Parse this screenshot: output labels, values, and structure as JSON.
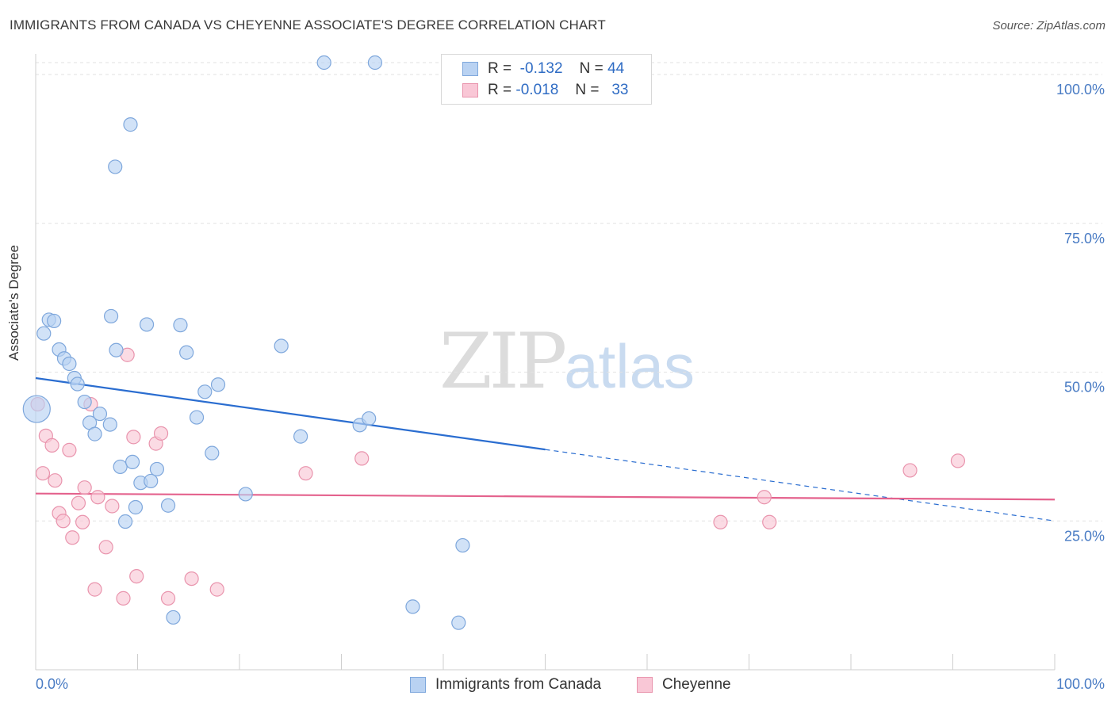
{
  "header": {
    "title": "IMMIGRANTS FROM CANADA VS CHEYENNE ASSOCIATE'S DEGREE CORRELATION CHART",
    "source": "Source: ZipAtlas.com"
  },
  "watermark": {
    "part1": "ZIP",
    "part2": "atlas"
  },
  "legend_top": {
    "rows": [
      {
        "r_label": "R =",
        "r_value": "-0.132",
        "n_label": "N =",
        "n_value": "44"
      },
      {
        "r_label": "R =",
        "r_value": "-0.018",
        "n_label": "N =",
        "n_value": "33"
      }
    ]
  },
  "legend_bottom": {
    "items": [
      {
        "label": "Immigrants from Canada"
      },
      {
        "label": "Cheyenne"
      }
    ]
  },
  "colors": {
    "blue_fill": "#b9d2f2",
    "blue_stroke": "#7ea7dc",
    "blue_line": "#2a6dd0",
    "pink_fill": "#f9c7d6",
    "pink_stroke": "#e994ad",
    "pink_line": "#e4628d",
    "tick_text": "#4a7cc4"
  },
  "chart_data": {
    "type": "scatter",
    "title": "IMMIGRANTS FROM CANADA VS CHEYENNE ASSOCIATE'S DEGREE CORRELATION CHART",
    "xlabel": "",
    "ylabel": "Associate's Degree",
    "xlim": [
      0,
      100
    ],
    "ylim": [
      0,
      102
    ],
    "x_tick_labels": [
      "0.0%",
      "100.0%"
    ],
    "y_ticks": [
      25,
      50,
      75,
      100
    ],
    "y_tick_labels": [
      "25.0%",
      "50.0%",
      "75.0%",
      "100.0%"
    ],
    "grid": true,
    "legend_position": "top-center",
    "series": [
      {
        "name": "Immigrants from Canada",
        "r": -0.132,
        "n": 44,
        "points": [
          [
            0.8,
            56.5
          ],
          [
            1.3,
            58.8
          ],
          [
            1.8,
            58.6
          ],
          [
            2.3,
            53.8
          ],
          [
            2.8,
            52.3
          ],
          [
            3.3,
            51.4
          ],
          [
            3.8,
            49.0
          ],
          [
            4.1,
            48.0
          ],
          [
            4.8,
            45.0
          ],
          [
            5.3,
            41.5
          ],
          [
            5.8,
            39.6
          ],
          [
            6.3,
            43.0
          ],
          [
            7.3,
            41.2
          ],
          [
            7.9,
            53.7
          ],
          [
            7.8,
            84.5
          ],
          [
            7.4,
            59.4
          ],
          [
            8.3,
            34.1
          ],
          [
            8.8,
            24.9
          ],
          [
            9.5,
            34.9
          ],
          [
            9.8,
            27.3
          ],
          [
            10.3,
            31.4
          ],
          [
            10.9,
            58.0
          ],
          [
            11.3,
            31.7
          ],
          [
            11.9,
            33.7
          ],
          [
            13.0,
            27.6
          ],
          [
            13.5,
            8.8
          ],
          [
            14.2,
            57.9
          ],
          [
            14.8,
            53.3
          ],
          [
            15.8,
            42.4
          ],
          [
            16.6,
            46.7
          ],
          [
            17.3,
            36.4
          ],
          [
            17.9,
            47.9
          ],
          [
            20.6,
            29.5
          ],
          [
            24.1,
            54.4
          ],
          [
            26.0,
            39.2
          ],
          [
            31.8,
            41.1
          ],
          [
            32.7,
            42.2
          ],
          [
            33.3,
            102.0
          ],
          [
            37.0,
            10.6
          ],
          [
            41.5,
            7.9
          ],
          [
            41.9,
            20.9
          ],
          [
            0.1,
            43.8
          ],
          [
            9.3,
            91.6
          ],
          [
            28.3,
            102.0
          ]
        ]
      },
      {
        "name": "Cheyenne",
        "r": -0.018,
        "n": 33,
        "points": [
          [
            0.2,
            44.6
          ],
          [
            0.7,
            33.0
          ],
          [
            1.0,
            39.3
          ],
          [
            1.6,
            37.7
          ],
          [
            1.9,
            31.8
          ],
          [
            2.3,
            26.3
          ],
          [
            2.7,
            25.0
          ],
          [
            3.3,
            36.9
          ],
          [
            3.6,
            22.2
          ],
          [
            4.2,
            28.0
          ],
          [
            4.6,
            24.8
          ],
          [
            4.8,
            30.6
          ],
          [
            5.4,
            44.6
          ],
          [
            5.8,
            13.5
          ],
          [
            6.1,
            29.0
          ],
          [
            6.9,
            20.6
          ],
          [
            7.5,
            27.5
          ],
          [
            8.6,
            12.0
          ],
          [
            9.0,
            52.9
          ],
          [
            9.6,
            39.1
          ],
          [
            9.9,
            15.7
          ],
          [
            11.8,
            38.0
          ],
          [
            12.3,
            39.7
          ],
          [
            13.0,
            12.0
          ],
          [
            15.3,
            15.3
          ],
          [
            17.8,
            13.5
          ],
          [
            26.5,
            33.0
          ],
          [
            32.0,
            35.5
          ],
          [
            67.2,
            24.8
          ],
          [
            71.5,
            29.0
          ],
          [
            72.0,
            24.8
          ],
          [
            85.8,
            33.5
          ],
          [
            90.5,
            35.1
          ]
        ]
      }
    ],
    "trend_lines": [
      {
        "series": "Immigrants from Canada",
        "x": [
          0,
          50,
          100
        ],
        "y": [
          49.0,
          37.0,
          25.0
        ],
        "solid_until_x": 50
      },
      {
        "series": "Cheyenne",
        "x": [
          0,
          100
        ],
        "y": [
          29.6,
          28.6
        ]
      }
    ]
  }
}
